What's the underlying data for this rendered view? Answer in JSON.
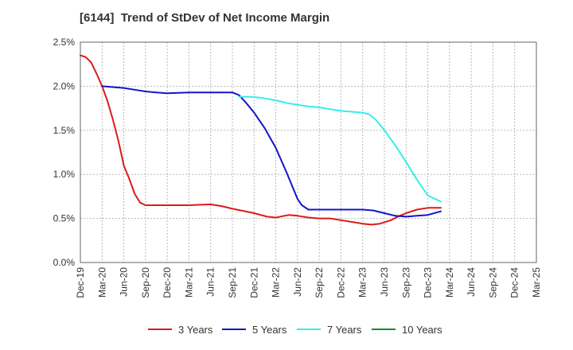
{
  "chart_data": {
    "type": "line",
    "title": "[6144]  Trend of StDev of Net Income Margin",
    "xlabel": "",
    "ylabel": "",
    "ylim": [
      0,
      2.5
    ],
    "yticks": [
      "0.0%",
      "0.5%",
      "1.0%",
      "1.5%",
      "2.0%",
      "2.5%"
    ],
    "ytick_values": [
      0,
      0.5,
      1.0,
      1.5,
      2.0,
      2.5
    ],
    "x_categories": [
      "Dec-19",
      "Mar-20",
      "Jun-20",
      "Sep-20",
      "Dec-20",
      "Mar-21",
      "Jun-21",
      "Sep-21",
      "Dec-21",
      "Mar-22",
      "Jun-22",
      "Sep-22",
      "Dec-22",
      "Mar-23",
      "Jun-23",
      "Sep-23",
      "Dec-23",
      "Mar-24",
      "Jun-24",
      "Sep-24",
      "Dec-24",
      "Mar-25"
    ],
    "grid": true,
    "legend_position": "bottom",
    "series": [
      {
        "name": "3 Years",
        "color": "#dd1a1a",
        "values": [
          2.35,
          2.0,
          1.5,
          0.7,
          0.65,
          0.66,
          0.63,
          0.57,
          0.51,
          0.53,
          0.5,
          0.48,
          0.45,
          0.47,
          0.57,
          0.62,
          null,
          null,
          null,
          null,
          null,
          null
        ],
        "points": [
          [
            0,
            2.35
          ],
          [
            0.25,
            2.33
          ],
          [
            0.5,
            2.27
          ],
          [
            0.75,
            2.14
          ],
          [
            1,
            2.0
          ],
          [
            1.25,
            1.83
          ],
          [
            1.5,
            1.62
          ],
          [
            1.75,
            1.38
          ],
          [
            2,
            1.1
          ],
          [
            2.25,
            0.95
          ],
          [
            2.5,
            0.78
          ],
          [
            2.75,
            0.68
          ],
          [
            3,
            0.65
          ],
          [
            4,
            0.65
          ],
          [
            5,
            0.65
          ],
          [
            6,
            0.66
          ],
          [
            6.5,
            0.64
          ],
          [
            7,
            0.61
          ],
          [
            8,
            0.56
          ],
          [
            8.6,
            0.52
          ],
          [
            9,
            0.51
          ],
          [
            9.6,
            0.54
          ],
          [
            10,
            0.53
          ],
          [
            10.5,
            0.51
          ],
          [
            11,
            0.5
          ],
          [
            11.5,
            0.5
          ],
          [
            12,
            0.48
          ],
          [
            12.5,
            0.46
          ],
          [
            13,
            0.44
          ],
          [
            13.4,
            0.43
          ],
          [
            13.8,
            0.44
          ],
          [
            14.3,
            0.48
          ],
          [
            14.7,
            0.53
          ],
          [
            15,
            0.56
          ],
          [
            15.5,
            0.6
          ],
          [
            16,
            0.62
          ],
          [
            16.6,
            0.62
          ]
        ]
      },
      {
        "name": "5 Years",
        "color": "#1414c8",
        "values": [
          null,
          2.0,
          1.97,
          1.93,
          1.93,
          1.93,
          1.92,
          1.55,
          0.68,
          0.6,
          0.6,
          0.52,
          0.58,
          null,
          null,
          null,
          null,
          null,
          null,
          null,
          null,
          null
        ],
        "points": [
          [
            1,
            2.0
          ],
          [
            1.5,
            1.99
          ],
          [
            2,
            1.98
          ],
          [
            2.5,
            1.96
          ],
          [
            3,
            1.94
          ],
          [
            3.5,
            1.93
          ],
          [
            4,
            1.92
          ],
          [
            5,
            1.93
          ],
          [
            6,
            1.93
          ],
          [
            6.5,
            1.93
          ],
          [
            7,
            1.93
          ],
          [
            7.3,
            1.9
          ],
          [
            7.6,
            1.82
          ],
          [
            8,
            1.7
          ],
          [
            8.5,
            1.52
          ],
          [
            9,
            1.3
          ],
          [
            9.5,
            1.02
          ],
          [
            10,
            0.72
          ],
          [
            10.2,
            0.65
          ],
          [
            10.5,
            0.6
          ],
          [
            11,
            0.6
          ],
          [
            12,
            0.6
          ],
          [
            13,
            0.6
          ],
          [
            13.5,
            0.59
          ],
          [
            14,
            0.56
          ],
          [
            14.5,
            0.53
          ],
          [
            15,
            0.52
          ],
          [
            15.5,
            0.53
          ],
          [
            16,
            0.54
          ],
          [
            16.6,
            0.58
          ]
        ]
      },
      {
        "name": "7 Years",
        "color": "#33eeee",
        "values": [
          null,
          null,
          null,
          null,
          null,
          null,
          null,
          1.88,
          1.82,
          1.76,
          1.72,
          1.62,
          1.25,
          0.69,
          null,
          null,
          null,
          null,
          null,
          null,
          null,
          null
        ],
        "points": [
          [
            7.3,
            1.88
          ],
          [
            7.8,
            1.88
          ],
          [
            8.3,
            1.87
          ],
          [
            9,
            1.84
          ],
          [
            9.5,
            1.81
          ],
          [
            10,
            1.79
          ],
          [
            10.5,
            1.77
          ],
          [
            11,
            1.76
          ],
          [
            11.5,
            1.74
          ],
          [
            12,
            1.72
          ],
          [
            12.5,
            1.71
          ],
          [
            13,
            1.7
          ],
          [
            13.3,
            1.68
          ],
          [
            13.6,
            1.62
          ],
          [
            14,
            1.5
          ],
          [
            14.5,
            1.33
          ],
          [
            15,
            1.14
          ],
          [
            15.5,
            0.94
          ],
          [
            16,
            0.76
          ],
          [
            16.6,
            0.69
          ]
        ]
      },
      {
        "name": "10 Years",
        "color": "#1a8a1a",
        "values": [],
        "points": []
      }
    ]
  }
}
